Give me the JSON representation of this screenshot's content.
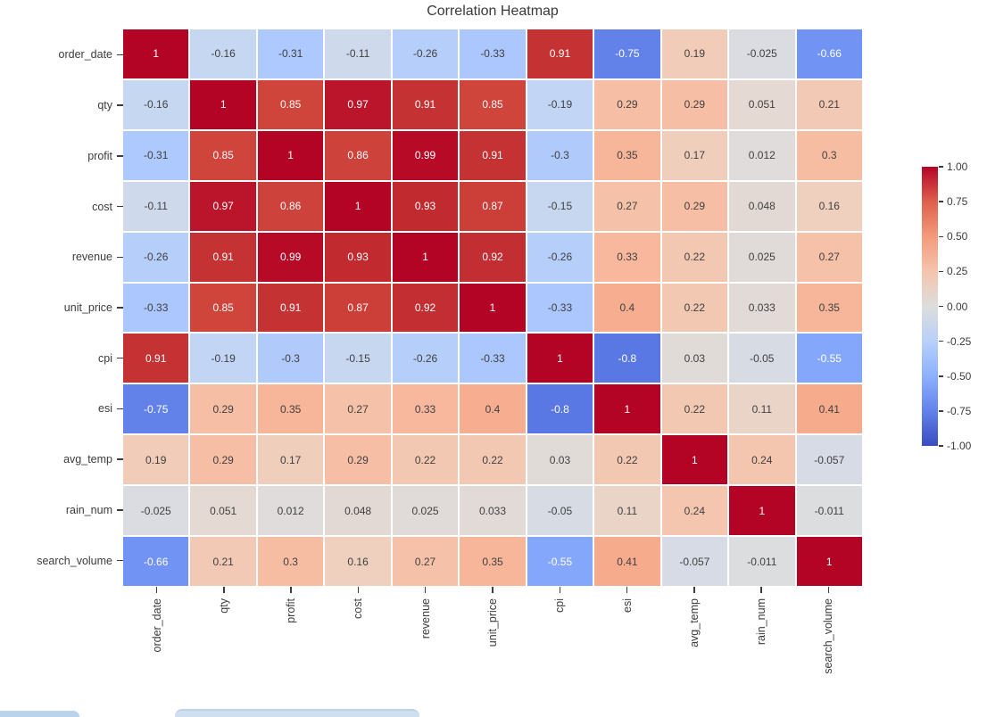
{
  "title": "Correlation Heatmap",
  "chart_data": {
    "type": "heatmap",
    "title": "Correlation Heatmap",
    "variables": [
      "order_date",
      "qty",
      "profit",
      "cost",
      "revenue",
      "unit_price",
      "cpi",
      "esi",
      "avg_temp",
      "rain_num",
      "search_volume"
    ],
    "matrix_display": [
      [
        "1",
        "-0.16",
        "-0.31",
        "-0.11",
        "-0.26",
        "-0.33",
        "0.91",
        "-0.75",
        "0.19",
        "-0.025",
        "-0.66"
      ],
      [
        "-0.16",
        "1",
        "0.85",
        "0.97",
        "0.91",
        "0.85",
        "-0.19",
        "0.29",
        "0.29",
        "0.051",
        "0.21"
      ],
      [
        "-0.31",
        "0.85",
        "1",
        "0.86",
        "0.99",
        "0.91",
        "-0.3",
        "0.35",
        "0.17",
        "0.012",
        "0.3"
      ],
      [
        "-0.11",
        "0.97",
        "0.86",
        "1",
        "0.93",
        "0.87",
        "-0.15",
        "0.27",
        "0.29",
        "0.048",
        "0.16"
      ],
      [
        "-0.26",
        "0.91",
        "0.99",
        "0.93",
        "1",
        "0.92",
        "-0.26",
        "0.33",
        "0.22",
        "0.025",
        "0.27"
      ],
      [
        "-0.33",
        "0.85",
        "0.91",
        "0.87",
        "0.92",
        "1",
        "-0.33",
        "0.4",
        "0.22",
        "0.033",
        "0.35"
      ],
      [
        "0.91",
        "-0.19",
        "-0.3",
        "-0.15",
        "-0.26",
        "-0.33",
        "1",
        "-0.8",
        "0.03",
        "-0.05",
        "-0.55"
      ],
      [
        "-0.75",
        "0.29",
        "0.35",
        "0.27",
        "0.33",
        "0.4",
        "-0.8",
        "1",
        "0.22",
        "0.11",
        "0.41"
      ],
      [
        "0.19",
        "0.29",
        "0.17",
        "0.29",
        "0.22",
        "0.22",
        "0.03",
        "0.22",
        "1",
        "0.24",
        "-0.057"
      ],
      [
        "-0.025",
        "0.051",
        "0.012",
        "0.048",
        "0.025",
        "0.033",
        "-0.05",
        "0.11",
        "0.24",
        "1",
        "-0.011"
      ],
      [
        "-0.66",
        "0.21",
        "0.3",
        "0.16",
        "0.27",
        "0.35",
        "-0.55",
        "0.41",
        "-0.057",
        "-0.011",
        "1"
      ]
    ],
    "vmin": -1,
    "vmax": 1,
    "colormap": "coolwarm",
    "colorbar_ticks": [
      "1.00",
      "0.75",
      "0.50",
      "0.25",
      "0.00",
      "-0.25",
      "-0.50",
      "-0.75",
      "-1.00"
    ],
    "legend_position": "right",
    "grid": "white-lines",
    "x_tick_rotation": 90
  },
  "colors": {
    "cmap_min": "#3b4cc0",
    "cmap_mid": "#dddddd",
    "cmap_max": "#b40426",
    "annot_dark": "#404040",
    "annot_light": "#ffffff",
    "axis_text": "#3c3c3c",
    "background": "#ffffff",
    "bottom_fragment_left": "#b9d3ec",
    "bottom_fragment_center": "#cfdff0"
  }
}
